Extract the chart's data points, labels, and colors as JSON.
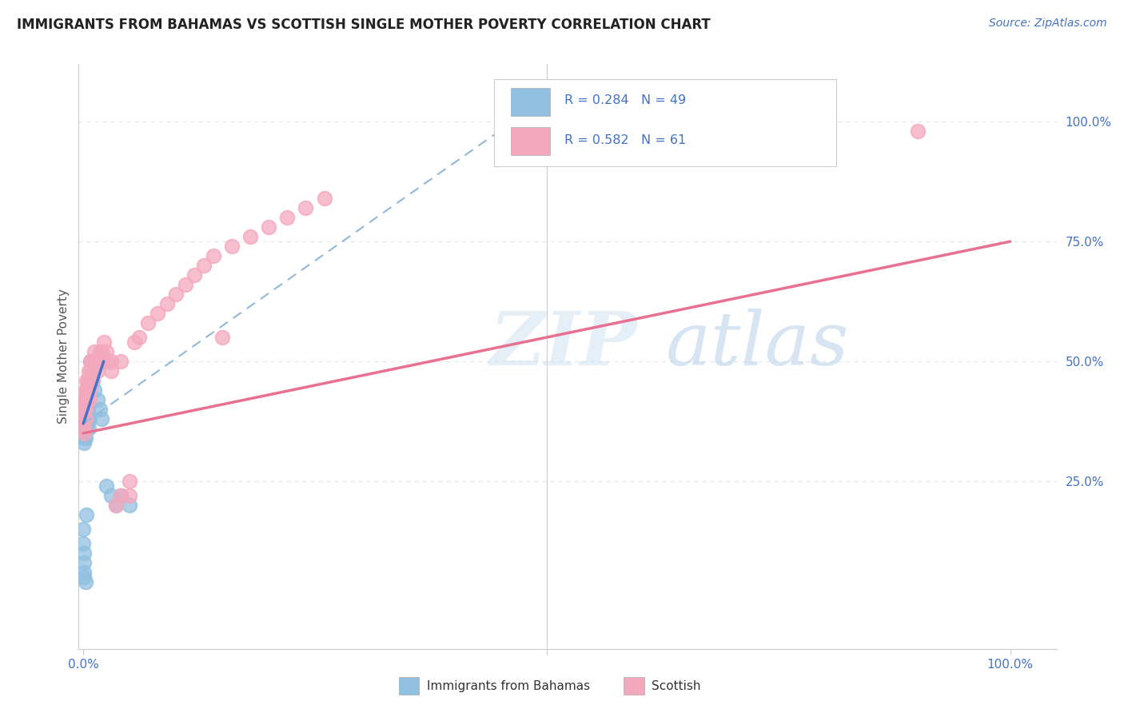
{
  "title": "IMMIGRANTS FROM BAHAMAS VS SCOTTISH SINGLE MOTHER POVERTY CORRELATION CHART",
  "source_text": "Source: ZipAtlas.com",
  "ylabel": "Single Mother Poverty",
  "legend_label1": "Immigrants from Bahamas",
  "legend_label2": "Scottish",
  "R1": 0.284,
  "N1": 49,
  "R2": 0.582,
  "N2": 61,
  "color_blue": "#92c0e0",
  "color_pink": "#f4a8be",
  "color_blue_line": "#4472c4",
  "color_pink_line": "#e87090",
  "color_blue_dash": "#90b8d8",
  "text_color_blue": "#4472c4",
  "title_color": "#222222",
  "grid_color": "#e0e8f0",
  "right_ytick_labels": [
    "25.0%",
    "50.0%",
    "75.0%",
    "100.0%"
  ],
  "right_ytick_values": [
    0.25,
    0.5,
    0.75,
    1.0
  ],
  "xlim_min": -0.005,
  "xlim_max": 1.05,
  "ylim_min": -0.1,
  "ylim_max": 1.12,
  "blue_scatter_x": [
    0.0002,
    0.0003,
    0.0005,
    0.0005,
    0.0006,
    0.0008,
    0.001,
    0.001,
    0.001,
    0.001,
    0.001,
    0.001,
    0.0012,
    0.0015,
    0.002,
    0.002,
    0.002,
    0.002,
    0.002,
    0.003,
    0.003,
    0.003,
    0.004,
    0.004,
    0.005,
    0.005,
    0.006,
    0.007,
    0.008,
    0.01,
    0.01,
    0.012,
    0.015,
    0.018,
    0.02,
    0.025,
    0.03,
    0.035,
    0.04,
    0.05,
    0.0001,
    0.0002,
    0.0003,
    0.0005,
    0.0008,
    0.001,
    0.002,
    0.003,
    0.6
  ],
  "blue_scatter_y": [
    0.36,
    0.34,
    0.38,
    0.4,
    0.37,
    0.35,
    0.42,
    0.4,
    0.38,
    0.36,
    0.33,
    0.35,
    0.39,
    0.37,
    0.38,
    0.4,
    0.42,
    0.36,
    0.34,
    0.4,
    0.38,
    0.42,
    0.39,
    0.37,
    0.38,
    0.4,
    0.36,
    0.38,
    0.5,
    0.48,
    0.46,
    0.44,
    0.42,
    0.4,
    0.38,
    0.24,
    0.22,
    0.2,
    0.22,
    0.2,
    0.15,
    0.12,
    0.1,
    0.08,
    0.06,
    0.05,
    0.04,
    0.18,
    0.98
  ],
  "pink_scatter_x": [
    0.001,
    0.001,
    0.001,
    0.001,
    0.001,
    0.002,
    0.002,
    0.002,
    0.002,
    0.003,
    0.003,
    0.003,
    0.004,
    0.004,
    0.005,
    0.005,
    0.005,
    0.006,
    0.006,
    0.007,
    0.007,
    0.008,
    0.008,
    0.009,
    0.01,
    0.01,
    0.012,
    0.012,
    0.015,
    0.015,
    0.018,
    0.02,
    0.02,
    0.022,
    0.025,
    0.025,
    0.03,
    0.03,
    0.035,
    0.04,
    0.04,
    0.05,
    0.05,
    0.055,
    0.06,
    0.07,
    0.08,
    0.09,
    0.1,
    0.11,
    0.12,
    0.13,
    0.14,
    0.15,
    0.16,
    0.18,
    0.2,
    0.22,
    0.24,
    0.26,
    0.9
  ],
  "pink_scatter_y": [
    0.38,
    0.4,
    0.42,
    0.36,
    0.35,
    0.4,
    0.42,
    0.44,
    0.38,
    0.42,
    0.44,
    0.46,
    0.42,
    0.44,
    0.44,
    0.46,
    0.42,
    0.48,
    0.46,
    0.44,
    0.42,
    0.5,
    0.48,
    0.46,
    0.48,
    0.5,
    0.5,
    0.52,
    0.48,
    0.5,
    0.52,
    0.5,
    0.52,
    0.54,
    0.5,
    0.52,
    0.48,
    0.5,
    0.2,
    0.22,
    0.5,
    0.25,
    0.22,
    0.54,
    0.55,
    0.58,
    0.6,
    0.62,
    0.64,
    0.66,
    0.68,
    0.7,
    0.72,
    0.55,
    0.74,
    0.76,
    0.78,
    0.8,
    0.82,
    0.84,
    0.98
  ],
  "blue_solid_line": {
    "x0": 0.0,
    "y0": 0.37,
    "x1": 0.022,
    "y1": 0.5
  },
  "blue_dash_line": {
    "x0": 0.0,
    "y0": 0.37,
    "x1": 0.5,
    "y1": 1.05
  },
  "pink_line": {
    "x0": 0.0,
    "y0": 0.35,
    "x1": 1.0,
    "y1": 0.75
  }
}
